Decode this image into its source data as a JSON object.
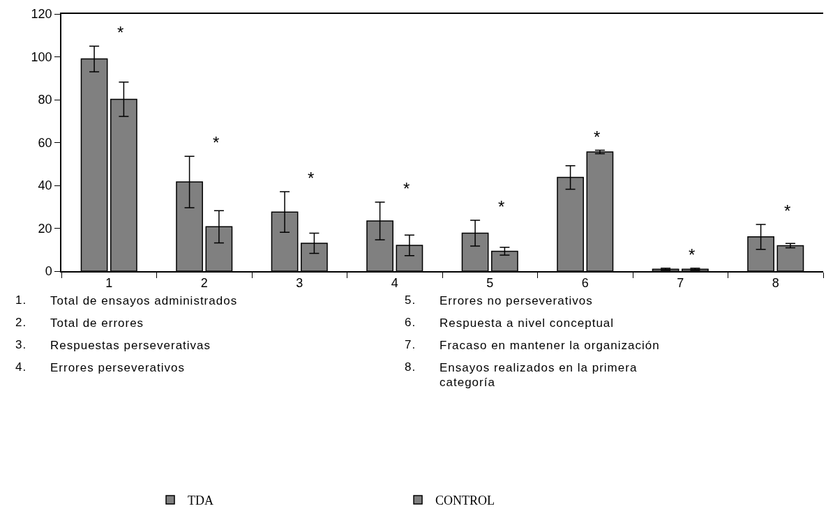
{
  "chart_data": {
    "type": "bar",
    "categories": [
      "1",
      "2",
      "3",
      "4",
      "5",
      "6",
      "7",
      "8"
    ],
    "series": [
      {
        "name": "TDA",
        "color": "#808080",
        "values": [
          99,
          41.6,
          27.6,
          23.4,
          17.7,
          43.7,
          0.9,
          16
        ],
        "errors": [
          6,
          12,
          9.5,
          8.8,
          6,
          5.5,
          0.5,
          5.8
        ]
      },
      {
        "name": "CONTROL",
        "color": "#808080",
        "values": [
          80.2,
          20.7,
          13,
          12,
          9.3,
          55.6,
          0.9,
          11.9
        ],
        "errors": [
          8,
          7.5,
          4.7,
          4.8,
          1.8,
          0.8,
          0.5,
          1
        ]
      }
    ],
    "ylim": [
      0,
      120
    ],
    "yticks": [
      0,
      20,
      40,
      60,
      80,
      100,
      120
    ],
    "grid": false,
    "legend": "bottom",
    "annotations": [
      "*",
      "*",
      "*",
      "*",
      "*",
      "*",
      "*",
      "*",
      "1.\tTotal de ensayos administrados",
      "2.\tTotal de errores",
      "3.\tRespuestas perseverativas",
      "4.\tErrores perseverativos",
      "5.\tErrores no perseverativos",
      "6.\tRespuesta a nivel conceptual",
      "7.\tFracaso en mantener la organización",
      "8.\tEnsayos realizados en la primera categoría"
    ]
  }
}
